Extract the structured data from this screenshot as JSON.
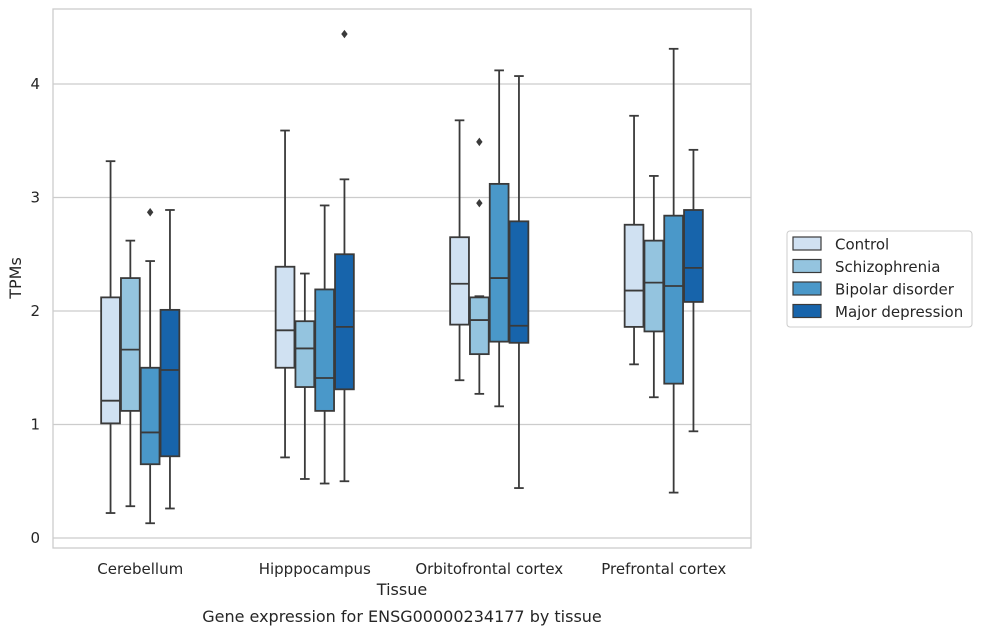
{
  "chart_data": {
    "type": "box",
    "title": "",
    "xlabel": "Tissue",
    "ylabel": "TPMs",
    "caption": "Gene expression for ENSG00000234177 by tissue",
    "categories": [
      "Cerebellum",
      "Hipppocampus",
      "Orbitofrontal cortex",
      "Prefrontal cortex"
    ],
    "yticks": [
      0,
      1,
      2,
      3,
      4
    ],
    "ylim": [
      -0.08,
      4.65
    ],
    "grid": "horizontal",
    "legend_position": "right",
    "series": [
      {
        "name": "Control",
        "color": "#d0e1f2",
        "boxes": [
          {
            "whisker_low": 0.22,
            "q1": 1.01,
            "median": 1.21,
            "q3": 2.12,
            "whisker_high": 3.32,
            "outliers": []
          },
          {
            "whisker_low": 0.71,
            "q1": 1.5,
            "median": 1.83,
            "q3": 2.39,
            "whisker_high": 3.59,
            "outliers": []
          },
          {
            "whisker_low": 1.39,
            "q1": 1.88,
            "median": 2.24,
            "q3": 2.65,
            "whisker_high": 3.68,
            "outliers": []
          },
          {
            "whisker_low": 1.53,
            "q1": 1.86,
            "median": 2.18,
            "q3": 2.76,
            "whisker_high": 3.72,
            "outliers": []
          }
        ]
      },
      {
        "name": "Schizophrenia",
        "color": "#94c4df",
        "boxes": [
          {
            "whisker_low": 0.28,
            "q1": 1.12,
            "median": 1.66,
            "q3": 2.29,
            "whisker_high": 2.62,
            "outliers": []
          },
          {
            "whisker_low": 0.52,
            "q1": 1.33,
            "median": 1.67,
            "q3": 1.91,
            "whisker_high": 2.33,
            "outliers": []
          },
          {
            "whisker_low": 1.27,
            "q1": 1.62,
            "median": 1.92,
            "q3": 2.12,
            "whisker_high": 2.13,
            "outliers": [
              3.49,
              2.95
            ]
          },
          {
            "whisker_low": 1.24,
            "q1": 1.82,
            "median": 2.25,
            "q3": 2.62,
            "whisker_high": 3.19,
            "outliers": []
          }
        ]
      },
      {
        "name": "Bipolar disorder",
        "color": "#4a98c9",
        "boxes": [
          {
            "whisker_low": 0.13,
            "q1": 0.65,
            "median": 0.93,
            "q3": 1.5,
            "whisker_high": 2.44,
            "outliers": [
              2.87
            ]
          },
          {
            "whisker_low": 0.48,
            "q1": 1.12,
            "median": 1.41,
            "q3": 2.19,
            "whisker_high": 2.93,
            "outliers": []
          },
          {
            "whisker_low": 1.16,
            "q1": 1.73,
            "median": 2.29,
            "q3": 3.12,
            "whisker_high": 4.12,
            "outliers": []
          },
          {
            "whisker_low": 0.4,
            "q1": 1.36,
            "median": 2.22,
            "q3": 2.84,
            "whisker_high": 4.31,
            "outliers": []
          }
        ]
      },
      {
        "name": "Major depression",
        "color": "#1764ab",
        "boxes": [
          {
            "whisker_low": 0.26,
            "q1": 0.72,
            "median": 1.48,
            "q3": 2.01,
            "whisker_high": 2.89,
            "outliers": []
          },
          {
            "whisker_low": 0.5,
            "q1": 1.31,
            "median": 1.86,
            "q3": 2.5,
            "whisker_high": 3.16,
            "outliers": [
              4.44
            ]
          },
          {
            "whisker_low": 0.44,
            "q1": 1.72,
            "median": 1.87,
            "q3": 2.79,
            "whisker_high": 4.07,
            "outliers": []
          },
          {
            "whisker_low": 0.94,
            "q1": 2.08,
            "median": 2.38,
            "q3": 2.89,
            "whisker_high": 3.42,
            "outliers": []
          }
        ]
      }
    ]
  },
  "colors": {
    "grid": "#cccccc",
    "frame": "#cccccc",
    "line": "#3a3a3a",
    "text": "#262626"
  }
}
